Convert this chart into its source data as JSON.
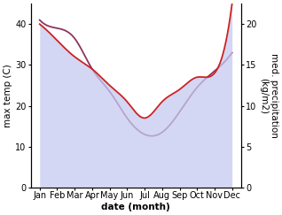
{
  "months": [
    "Jan",
    "Feb",
    "Mar",
    "Apr",
    "May",
    "Jun",
    "Jul",
    "Aug",
    "Sep",
    "Oct",
    "Nov",
    "Dec"
  ],
  "month_positions": [
    1,
    2,
    3,
    4,
    5,
    6,
    7,
    8,
    9,
    10,
    11,
    12
  ],
  "max_temp": [
    41.0,
    39.0,
    36.5,
    29.0,
    23.5,
    17.0,
    13.0,
    13.5,
    18.5,
    24.5,
    28.5,
    33.0
  ],
  "precipitation": [
    20.0,
    18.0,
    16.0,
    14.5,
    12.5,
    10.5,
    8.5,
    10.5,
    12.0,
    13.5,
    14.0,
    22.5
  ],
  "temp_color": "#8B3560",
  "precip_color": "#CC2222",
  "fill_color": "#C5CAF0",
  "fill_alpha": 0.75,
  "ylabel_left": "max temp (C)",
  "ylabel_right": "med. precipitation\n(kg/m2)",
  "xlabel": "date (month)",
  "ylim_left": [
    0,
    45
  ],
  "ylim_right": [
    0,
    22.5
  ],
  "yticks_left": [
    0,
    10,
    20,
    30,
    40
  ],
  "yticks_right": [
    0,
    5,
    10,
    15,
    20
  ],
  "bg_color": "#ffffff",
  "label_fontsize": 7.5,
  "tick_fontsize": 7.0
}
